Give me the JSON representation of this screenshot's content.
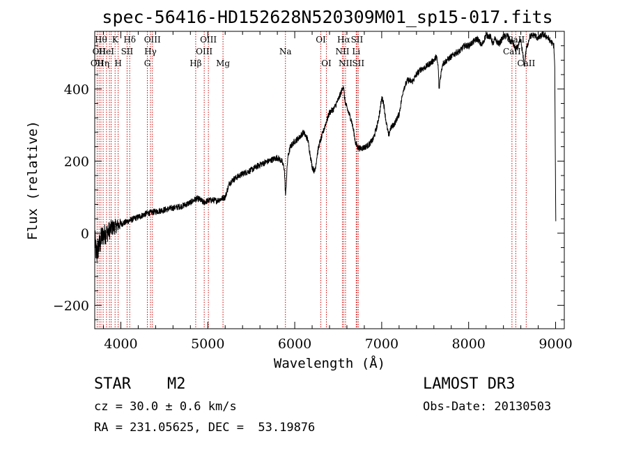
{
  "chart_data": {
    "type": "line",
    "title": "spec-56416-HD152628N520309M01_sp15-017.fits",
    "xlabel": "Wavelength (Å)",
    "ylabel": "Flux (relative)",
    "xlim": [
      3700,
      9100
    ],
    "ylim": [
      -265,
      560
    ],
    "xticks": [
      4000,
      5000,
      6000,
      7000,
      8000,
      9000
    ],
    "xtick_labels": [
      "4000",
      "5000",
      "6000",
      "7000",
      "8000",
      "9000"
    ],
    "yticks": [
      -200,
      0,
      200,
      400
    ],
    "ytick_labels": [
      "−200",
      "0",
      "200",
      "400"
    ],
    "series": [
      {
        "name": "flux",
        "x": [
          3700,
          3720,
          3740,
          3760,
          3780,
          3800,
          3830,
          3860,
          3900,
          3950,
          4000,
          4050,
          4100,
          4200,
          4300,
          4400,
          4500,
          4600,
          4700,
          4800,
          4860,
          4900,
          4950,
          5000,
          5050,
          5100,
          5150,
          5200,
          5250,
          5300,
          5400,
          5500,
          5600,
          5700,
          5800,
          5850,
          5880,
          5895,
          5905,
          5920,
          5950,
          6000,
          6050,
          6100,
          6150,
          6200,
          6230,
          6260,
          6280,
          6300,
          6320,
          6350,
          6400,
          6450,
          6500,
          6540,
          6560,
          6575,
          6590,
          6610,
          6650,
          6680,
          6700,
          6720,
          6750,
          6800,
          6850,
          6900,
          6950,
          6980,
          7000,
          7020,
          7050,
          7080,
          7100,
          7150,
          7200,
          7250,
          7300,
          7350,
          7400,
          7450,
          7500,
          7550,
          7600,
          7630,
          7650,
          7660,
          7670,
          7700,
          7750,
          7800,
          7850,
          7900,
          7950,
          8000,
          8050,
          8100,
          8150,
          8200,
          8220,
          8250,
          8280,
          8300,
          8350,
          8400,
          8450,
          8480,
          8500,
          8520,
          8540,
          8560,
          8600,
          8640,
          8662,
          8680,
          8700,
          8750,
          8800,
          8850,
          8900,
          8950,
          8980,
          8990,
          9000,
          9003
        ],
        "y": [
          -20,
          -60,
          -40,
          -30,
          -10,
          -5,
          0,
          5,
          15,
          20,
          25,
          30,
          35,
          45,
          55,
          60,
          65,
          70,
          75,
          85,
          95,
          95,
          85,
          90,
          92,
          90,
          95,
          100,
          140,
          150,
          165,
          175,
          190,
          200,
          210,
          200,
          180,
          100,
          150,
          210,
          240,
          255,
          265,
          280,
          260,
          185,
          170,
          220,
          245,
          260,
          275,
          300,
          335,
          345,
          370,
          395,
          410,
          370,
          355,
          340,
          315,
          280,
          250,
          240,
          235,
          238,
          245,
          260,
          300,
          340,
          375,
          365,
          310,
          270,
          290,
          305,
          330,
          400,
          425,
          420,
          440,
          455,
          460,
          470,
          480,
          490,
          460,
          395,
          425,
          470,
          480,
          490,
          500,
          505,
          520,
          520,
          530,
          540,
          520,
          550,
          548,
          545,
          525,
          538,
          525,
          545,
          548,
          530,
          535,
          520,
          510,
          515,
          535,
          465,
          510,
          525,
          545,
          550,
          540,
          552,
          545,
          530,
          520,
          460,
          100,
          0
        ],
        "noise_amplitude_at_blue_end": 40,
        "noise_amplitude": 9
      }
    ],
    "spectral_lines": [
      {
        "x": 3728,
        "label": "OII",
        "row": 2
      },
      {
        "x": 3750,
        "label": "OII",
        "row": 1
      },
      {
        "x": 3771,
        "label": "Hθ",
        "row": 0
      },
      {
        "x": 3797,
        "label": "Hη",
        "row": 2
      },
      {
        "x": 3835,
        "label": "HeI",
        "row": 1
      },
      {
        "x": 3869,
        "label": "",
        "row": 1
      },
      {
        "x": 3889,
        "label": "",
        "row": 0
      },
      {
        "x": 3934,
        "label": "K",
        "row": 0
      },
      {
        "x": 3969,
        "label": "H",
        "row": 2
      },
      {
        "x": 4072,
        "label": "SII",
        "row": 1
      },
      {
        "x": 4102,
        "label": "Hδ",
        "row": 0
      },
      {
        "x": 4305,
        "label": "G",
        "row": 2
      },
      {
        "x": 4341,
        "label": "Hγ",
        "row": 1
      },
      {
        "x": 4363,
        "label": "OIII",
        "row": 0
      },
      {
        "x": 4861,
        "label": "Hβ",
        "row": 2
      },
      {
        "x": 4959,
        "label": "OIII",
        "row": 1
      },
      {
        "x": 5007,
        "label": "OIII",
        "row": 0
      },
      {
        "x": 5175,
        "label": "Mg",
        "row": 2
      },
      {
        "x": 5893,
        "label": "Na",
        "row": 1
      },
      {
        "x": 6300,
        "label": "OI",
        "row": 0
      },
      {
        "x": 6364,
        "label": "OI",
        "row": 2
      },
      {
        "x": 6548,
        "label": "NII",
        "row": 1
      },
      {
        "x": 6563,
        "label": "Hα",
        "row": 0
      },
      {
        "x": 6584,
        "label": "NII",
        "row": 2
      },
      {
        "x": 6707,
        "label": "Li",
        "row": 1
      },
      {
        "x": 6716,
        "label": "SII",
        "row": 0
      },
      {
        "x": 6731,
        "label": "SII",
        "row": 2
      },
      {
        "x": 8498,
        "label": "CaII",
        "row": 1
      },
      {
        "x": 8542,
        "label": "CaII",
        "row": 0
      },
      {
        "x": 8662,
        "label": "CaII",
        "row": 2
      }
    ]
  },
  "info": {
    "object_class": "STAR",
    "subclass": "M2",
    "survey": "LAMOST DR3",
    "redshift": "cz = 30.0 ± 0.6 km/s",
    "obs_date": "Obs-Date: 20130503",
    "coords": "RA = 231.05625, DEC =  53.19876"
  },
  "colors": {
    "line_markers": "#cc0000",
    "spectrum": "#000000",
    "axes": "#000000"
  }
}
